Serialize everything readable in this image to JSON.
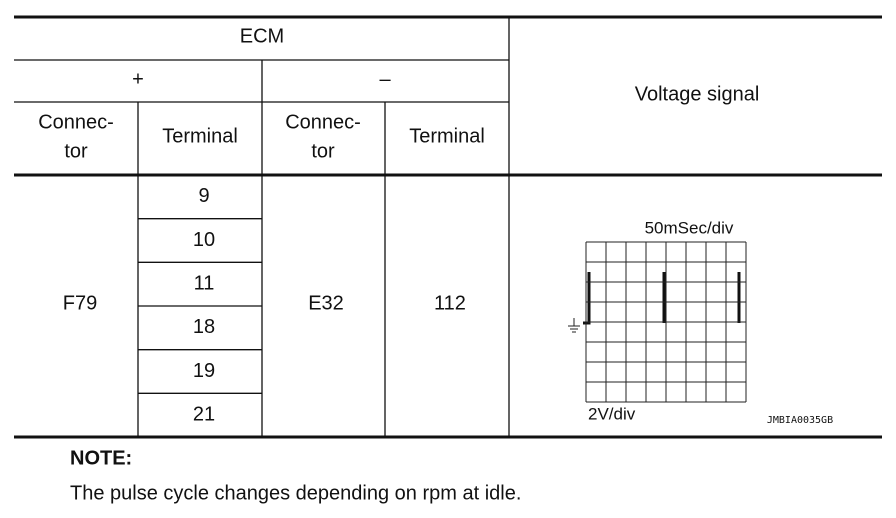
{
  "table": {
    "ecm": "ECM",
    "plus": "+",
    "minus": "–",
    "connector_header": [
      "Connec-",
      "tor"
    ],
    "terminal_header": "Terminal",
    "voltage_signal": "Voltage signal",
    "plus_connector": "F79",
    "plus_terminals": [
      "9",
      "10",
      "11",
      "18",
      "19",
      "21"
    ],
    "minus_connector": "E32",
    "minus_terminal": "112",
    "scope": {
      "time_div": "50mSec/div",
      "volt_div": "2V/div",
      "code": "JMBIA0035GB"
    }
  },
  "note": {
    "title": "NOTE:",
    "text": "The pulse cycle changes depending on rpm at idle."
  }
}
